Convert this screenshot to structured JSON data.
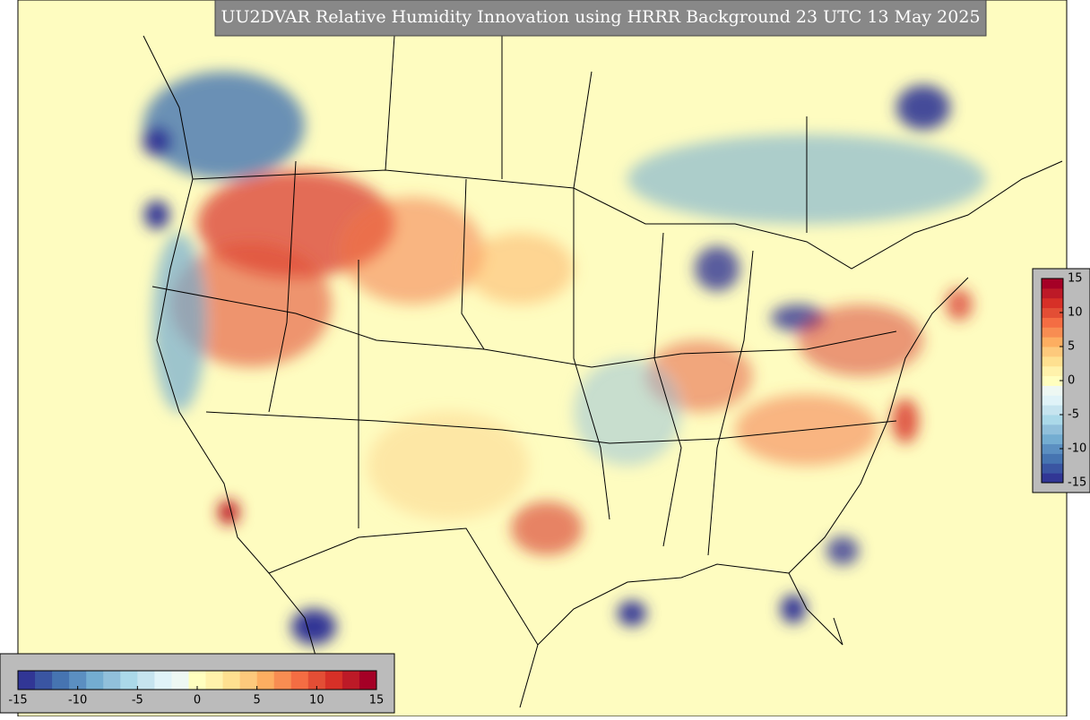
{
  "title": "UU2DVAR Relative Humidity Innovation using HRRR Background 23 UTC 13 May 2025",
  "colorbars": [
    {
      "orientation": "horizontal",
      "vmin": -15,
      "vmax": 15,
      "ticks": [
        -15,
        -10,
        -5,
        0,
        5,
        10,
        15
      ]
    },
    {
      "orientation": "vertical",
      "vmin": -15,
      "vmax": 15,
      "ticks": [
        -15,
        -10,
        -5,
        0,
        5,
        10,
        15
      ]
    }
  ],
  "colors": [
    "#313695",
    "#3a55a2",
    "#4674b1",
    "#5b8fc1",
    "#74add1",
    "#91c0db",
    "#abd9e9",
    "#c6e4ef",
    "#e0f3f8",
    "#eef8f3",
    "#ffffbf",
    "#fff2ab",
    "#fee090",
    "#fdc97c",
    "#fdae61",
    "#f88d52",
    "#f46d43",
    "#e34e35",
    "#d73027",
    "#bd1a27",
    "#a50026"
  ]
}
